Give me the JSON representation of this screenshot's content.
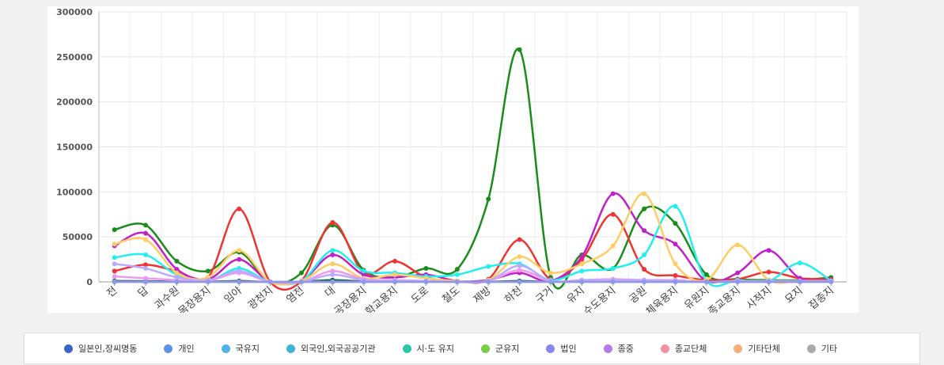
{
  "chart_data": {
    "type": "line",
    "categories": [
      "전",
      "답",
      "과수원",
      "목장용지",
      "임야",
      "광천지",
      "염전",
      "대",
      "공장용지",
      "학교용지",
      "도로",
      "철도",
      "제방",
      "하천",
      "구거",
      "유지",
      "수도용지",
      "공원",
      "체육용지",
      "유원지",
      "종교용지",
      "사적지",
      "묘지",
      "잡종지"
    ],
    "ylim": [
      0,
      300000
    ],
    "yticks": [
      0,
      50000,
      100000,
      150000,
      200000,
      250000,
      300000
    ],
    "grid": true,
    "series": [
      {
        "name": "일본인,장씨명동",
        "color": "#3a66c4",
        "line_color": "#116644",
        "values": [
          1000,
          800,
          500,
          300,
          1000,
          0,
          200,
          2000,
          500,
          300,
          300,
          100,
          200,
          1000,
          100,
          500,
          1000,
          800,
          500,
          100,
          300,
          300,
          200,
          200
        ]
      },
      {
        "name": "개인",
        "color": "#5b93e8",
        "line_color": "#1a8c1a",
        "values": [
          58000,
          63000,
          23000,
          12000,
          33000,
          0,
          10000,
          63000,
          13000,
          5000,
          15000,
          14000,
          92000,
          258000,
          5000,
          30000,
          15000,
          81000,
          65000,
          8000,
          3000,
          2000,
          2000,
          5000
        ]
      },
      {
        "name": "국유지",
        "color": "#4fb3f0",
        "line_color": "#ee3333",
        "values": [
          12000,
          19000,
          12000,
          5000,
          81000,
          0,
          1000,
          66000,
          10000,
          23000,
          5000,
          1000,
          3000,
          47000,
          3000,
          25000,
          75000,
          14000,
          7000,
          2000,
          3000,
          11000,
          4000,
          3000
        ]
      },
      {
        "name": "외국인,외국공공기관",
        "color": "#3bb7d6",
        "line_color": "#c020c8",
        "values": [
          40000,
          54000,
          14000,
          3000,
          25000,
          0,
          1000,
          30000,
          8000,
          5000,
          8000,
          1000,
          2000,
          10000,
          1000,
          28000,
          98000,
          57000,
          42000,
          1000,
          10000,
          35000,
          4000,
          2000
        ]
      },
      {
        "name": "시·도 유지",
        "color": "#2ec4a6",
        "line_color": "#22eeee",
        "values": [
          27000,
          30000,
          8000,
          1000,
          15000,
          0,
          1000,
          35000,
          12000,
          10000,
          6000,
          8000,
          17000,
          20000,
          2000,
          12000,
          15000,
          30000,
          84000,
          1000,
          2000,
          1000,
          21000,
          1000
        ]
      },
      {
        "name": "군유지",
        "color": "#7ccc44",
        "line_color": "#ffcc66",
        "values": [
          42000,
          47000,
          10000,
          5000,
          35000,
          0,
          1000,
          20000,
          4000,
          8000,
          4000,
          1000,
          2000,
          28000,
          10000,
          20000,
          40000,
          98000,
          20000,
          2000,
          41000,
          2000,
          1000,
          1000
        ]
      },
      {
        "name": "법인",
        "color": "#8888f0",
        "line_color": "#ee99ee",
        "values": [
          6000,
          4000,
          2000,
          1000,
          10000,
          0,
          0,
          12000,
          3000,
          2000,
          1000,
          0,
          1000,
          13000,
          1000,
          2000,
          3000,
          2000,
          2000,
          0,
          1000,
          1000,
          1000,
          1000
        ]
      },
      {
        "name": "종중",
        "color": "#b77ae8",
        "line_color": "#bbaaff",
        "values": [
          20000,
          15000,
          5000,
          2000,
          12000,
          0,
          0,
          8000,
          2000,
          1000,
          1000,
          0,
          1000,
          18000,
          1000,
          2000,
          2000,
          2000,
          1000,
          0,
          1000,
          1000,
          1000,
          1000
        ]
      },
      {
        "name": "종교단체",
        "color": "#f08fa6",
        "line_color": "#f08fa6",
        "values": [
          0,
          0,
          0,
          0,
          0,
          0,
          0,
          0,
          0,
          0,
          0,
          0,
          0,
          0,
          0,
          0,
          0,
          0,
          0,
          0,
          0,
          0,
          0,
          0
        ]
      },
      {
        "name": "기타단체",
        "color": "#f5ad7a",
        "line_color": "#f5ad7a",
        "values": [
          0,
          0,
          0,
          0,
          0,
          0,
          0,
          0,
          0,
          0,
          0,
          0,
          0,
          0,
          0,
          0,
          0,
          0,
          0,
          0,
          0,
          0,
          0,
          0
        ]
      },
      {
        "name": "기타",
        "color": "#aaaaaa",
        "line_color": "#8899ee",
        "values": [
          0,
          0,
          0,
          0,
          0,
          0,
          0,
          0,
          0,
          0,
          0,
          0,
          0,
          0,
          0,
          0,
          0,
          0,
          0,
          0,
          0,
          0,
          0,
          0
        ]
      }
    ]
  }
}
